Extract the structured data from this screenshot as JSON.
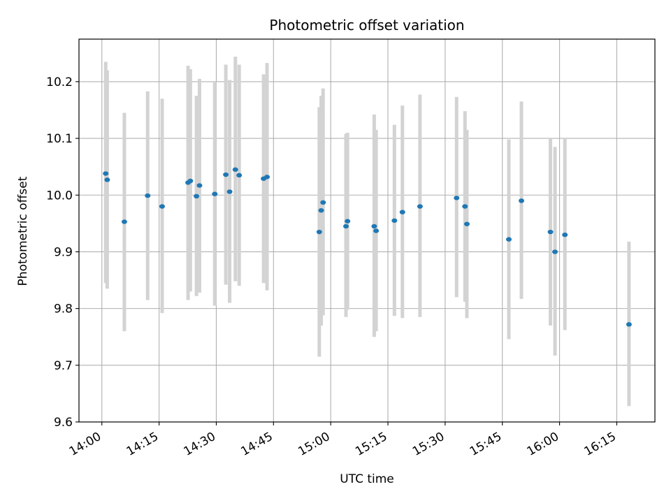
{
  "chart_data": {
    "type": "scatter",
    "title": "Photometric offset variation",
    "xlabel": "UTC time",
    "ylabel": "Photometric offset",
    "grid": true,
    "x_unit": "minutes since 14:00 UTC",
    "xlim": [
      -6,
      145
    ],
    "ylim": [
      9.6,
      10.275
    ],
    "x_ticks": [
      {
        "value": 0,
        "label": "14:00"
      },
      {
        "value": 15,
        "label": "14:15"
      },
      {
        "value": 30,
        "label": "14:30"
      },
      {
        "value": 45,
        "label": "14:45"
      },
      {
        "value": 60,
        "label": "15:00"
      },
      {
        "value": 75,
        "label": "15:15"
      },
      {
        "value": 90,
        "label": "15:30"
      },
      {
        "value": 105,
        "label": "15:45"
      },
      {
        "value": 120,
        "label": "16:00"
      },
      {
        "value": 135,
        "label": "16:15"
      }
    ],
    "y_ticks": [
      {
        "value": 9.6,
        "label": "9.6"
      },
      {
        "value": 9.7,
        "label": "9.7"
      },
      {
        "value": 9.8,
        "label": "9.8"
      },
      {
        "value": 9.9,
        "label": "9.9"
      },
      {
        "value": 10.0,
        "label": "10.0"
      },
      {
        "value": 10.1,
        "label": "10.1"
      },
      {
        "value": 10.2,
        "label": "10.2"
      }
    ],
    "marker_color": "#1f77b4",
    "errorbar_color": "#d3d3d3",
    "points": [
      {
        "x": 1.0,
        "y": 10.038,
        "err_low": 9.845,
        "err_high": 10.235
      },
      {
        "x": 1.4,
        "y": 10.027,
        "err_low": 9.835,
        "err_high": 10.22
      },
      {
        "x": 5.9,
        "y": 9.953,
        "err_low": 9.76,
        "err_high": 10.145
      },
      {
        "x": 12.0,
        "y": 9.999,
        "err_low": 9.815,
        "err_high": 10.183
      },
      {
        "x": 15.8,
        "y": 9.98,
        "err_low": 9.792,
        "err_high": 10.17
      },
      {
        "x": 22.6,
        "y": 10.022,
        "err_low": 9.815,
        "err_high": 10.228
      },
      {
        "x": 23.2,
        "y": 10.025,
        "err_low": 9.83,
        "err_high": 10.222
      },
      {
        "x": 24.8,
        "y": 9.998,
        "err_low": 9.822,
        "err_high": 10.175
      },
      {
        "x": 25.6,
        "y": 10.017,
        "err_low": 9.828,
        "err_high": 10.205
      },
      {
        "x": 29.6,
        "y": 10.002,
        "err_low": 9.805,
        "err_high": 10.2
      },
      {
        "x": 32.5,
        "y": 10.036,
        "err_low": 9.842,
        "err_high": 10.23
      },
      {
        "x": 33.5,
        "y": 10.006,
        "err_low": 9.81,
        "err_high": 10.203
      },
      {
        "x": 35.0,
        "y": 10.045,
        "err_low": 9.848,
        "err_high": 10.244
      },
      {
        "x": 36.0,
        "y": 10.035,
        "err_low": 9.84,
        "err_high": 10.23
      },
      {
        "x": 42.4,
        "y": 10.029,
        "err_low": 9.845,
        "err_high": 10.213
      },
      {
        "x": 43.3,
        "y": 10.032,
        "err_low": 9.832,
        "err_high": 10.233
      },
      {
        "x": 57.0,
        "y": 9.935,
        "err_low": 9.715,
        "err_high": 10.155
      },
      {
        "x": 57.5,
        "y": 9.973,
        "err_low": 9.77,
        "err_high": 10.175
      },
      {
        "x": 58.0,
        "y": 9.987,
        "err_low": 9.788,
        "err_high": 10.188
      },
      {
        "x": 64.0,
        "y": 9.945,
        "err_low": 9.785,
        "err_high": 10.108
      },
      {
        "x": 64.4,
        "y": 9.954,
        "err_low": 9.798,
        "err_high": 10.11
      },
      {
        "x": 71.4,
        "y": 9.945,
        "err_low": 9.75,
        "err_high": 10.142
      },
      {
        "x": 71.9,
        "y": 9.937,
        "err_low": 9.76,
        "err_high": 10.115
      },
      {
        "x": 76.7,
        "y": 9.955,
        "err_low": 9.787,
        "err_high": 10.124
      },
      {
        "x": 78.8,
        "y": 9.97,
        "err_low": 9.783,
        "err_high": 10.158
      },
      {
        "x": 83.4,
        "y": 9.98,
        "err_low": 9.785,
        "err_high": 10.177
      },
      {
        "x": 93.0,
        "y": 9.995,
        "err_low": 9.82,
        "err_high": 10.173
      },
      {
        "x": 95.2,
        "y": 9.98,
        "err_low": 9.812,
        "err_high": 10.148
      },
      {
        "x": 95.7,
        "y": 9.949,
        "err_low": 9.783,
        "err_high": 10.115
      },
      {
        "x": 106.7,
        "y": 9.922,
        "err_low": 9.746,
        "err_high": 10.098
      },
      {
        "x": 110.0,
        "y": 9.99,
        "err_low": 9.817,
        "err_high": 10.165
      },
      {
        "x": 117.6,
        "y": 9.935,
        "err_low": 9.77,
        "err_high": 10.1
      },
      {
        "x": 118.8,
        "y": 9.9,
        "err_low": 9.717,
        "err_high": 10.085
      },
      {
        "x": 121.4,
        "y": 9.93,
        "err_low": 9.762,
        "err_high": 10.1
      },
      {
        "x": 138.2,
        "y": 9.772,
        "err_low": 9.628,
        "err_high": 9.918
      }
    ]
  }
}
